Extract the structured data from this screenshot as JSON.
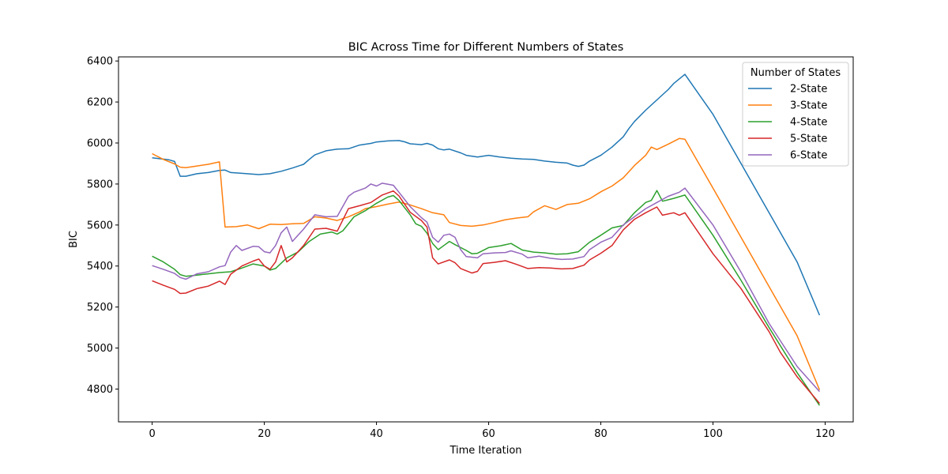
{
  "chart_data": {
    "type": "line",
    "title": "BIC Across Time for Different Numbers of States",
    "xlabel": "Time Iteration",
    "ylabel": "BIC",
    "xlim": [
      -6,
      125
    ],
    "ylim": [
      4640,
      6420
    ],
    "xticks": [
      0,
      20,
      40,
      60,
      80,
      100,
      120
    ],
    "yticks": [
      4800,
      5000,
      5200,
      5400,
      5600,
      5800,
      6000,
      6200,
      6400
    ],
    "grid": false,
    "legend": {
      "title": "Number of States",
      "position": "top-right"
    },
    "series": [
      {
        "name": "2-State",
        "color": "#1f77b4",
        "points": [
          [
            0,
            5928
          ],
          [
            3,
            5918
          ],
          [
            4,
            5910
          ],
          [
            5,
            5838
          ],
          [
            6,
            5838
          ],
          [
            8,
            5850
          ],
          [
            10,
            5856
          ],
          [
            12,
            5866
          ],
          [
            13,
            5868
          ],
          [
            14,
            5856
          ],
          [
            16,
            5852
          ],
          [
            19,
            5846
          ],
          [
            21,
            5850
          ],
          [
            23,
            5862
          ],
          [
            25,
            5878
          ],
          [
            27,
            5896
          ],
          [
            28,
            5920
          ],
          [
            29,
            5942
          ],
          [
            31,
            5962
          ],
          [
            33,
            5970
          ],
          [
            35,
            5972
          ],
          [
            37,
            5990
          ],
          [
            39,
            5998
          ],
          [
            40,
            6005
          ],
          [
            42,
            6010
          ],
          [
            44,
            6012
          ],
          [
            45,
            6006
          ],
          [
            46,
            5996
          ],
          [
            48,
            5992
          ],
          [
            49,
            5998
          ],
          [
            50,
            5990
          ],
          [
            51,
            5972
          ],
          [
            52,
            5966
          ],
          [
            53,
            5970
          ],
          [
            55,
            5952
          ],
          [
            56,
            5940
          ],
          [
            58,
            5932
          ],
          [
            60,
            5940
          ],
          [
            62,
            5932
          ],
          [
            64,
            5926
          ],
          [
            66,
            5922
          ],
          [
            68,
            5920
          ],
          [
            70,
            5912
          ],
          [
            72,
            5906
          ],
          [
            74,
            5902
          ],
          [
            75,
            5892
          ],
          [
            76,
            5886
          ],
          [
            77,
            5892
          ],
          [
            78,
            5912
          ],
          [
            80,
            5940
          ],
          [
            82,
            5980
          ],
          [
            84,
            6030
          ],
          [
            85,
            6070
          ],
          [
            86,
            6105
          ],
          [
            88,
            6160
          ],
          [
            90,
            6210
          ],
          [
            92,
            6260
          ],
          [
            93,
            6290
          ],
          [
            95,
            6335
          ],
          [
            100,
            6140
          ],
          [
            105,
            5900
          ],
          [
            110,
            5660
          ],
          [
            115,
            5420
          ],
          [
            119,
            5160
          ]
        ]
      },
      {
        "name": "3-State",
        "color": "#ff7f0e",
        "points": [
          [
            0,
            5948
          ],
          [
            2,
            5920
          ],
          [
            4,
            5898
          ],
          [
            5,
            5882
          ],
          [
            6,
            5880
          ],
          [
            8,
            5888
          ],
          [
            10,
            5896
          ],
          [
            12,
            5908
          ],
          [
            13,
            5590
          ],
          [
            15,
            5592
          ],
          [
            17,
            5600
          ],
          [
            19,
            5582
          ],
          [
            21,
            5604
          ],
          [
            23,
            5602
          ],
          [
            25,
            5606
          ],
          [
            27,
            5608
          ],
          [
            29,
            5640
          ],
          [
            31,
            5634
          ],
          [
            33,
            5622
          ],
          [
            35,
            5640
          ],
          [
            37,
            5664
          ],
          [
            38,
            5680
          ],
          [
            40,
            5690
          ],
          [
            42,
            5702
          ],
          [
            44,
            5712
          ],
          [
            46,
            5698
          ],
          [
            48,
            5680
          ],
          [
            50,
            5660
          ],
          [
            52,
            5650
          ],
          [
            53,
            5612
          ],
          [
            55,
            5598
          ],
          [
            57,
            5594
          ],
          [
            59,
            5600
          ],
          [
            61,
            5612
          ],
          [
            63,
            5626
          ],
          [
            65,
            5634
          ],
          [
            67,
            5640
          ],
          [
            68,
            5664
          ],
          [
            70,
            5694
          ],
          [
            72,
            5676
          ],
          [
            74,
            5700
          ],
          [
            76,
            5706
          ],
          [
            78,
            5728
          ],
          [
            80,
            5762
          ],
          [
            82,
            5790
          ],
          [
            84,
            5830
          ],
          [
            86,
            5890
          ],
          [
            88,
            5940
          ],
          [
            89,
            5980
          ],
          [
            90,
            5968
          ],
          [
            92,
            5994
          ],
          [
            94,
            6022
          ],
          [
            95,
            6018
          ],
          [
            100,
            5780
          ],
          [
            105,
            5540
          ],
          [
            110,
            5300
          ],
          [
            115,
            5060
          ],
          [
            119,
            4796
          ]
        ]
      },
      {
        "name": "4-State",
        "color": "#2ca02c",
        "points": [
          [
            0,
            5448
          ],
          [
            2,
            5420
          ],
          [
            4,
            5384
          ],
          [
            5,
            5358
          ],
          [
            6,
            5350
          ],
          [
            8,
            5356
          ],
          [
            10,
            5362
          ],
          [
            12,
            5368
          ],
          [
            14,
            5372
          ],
          [
            16,
            5390
          ],
          [
            18,
            5410
          ],
          [
            20,
            5400
          ],
          [
            21,
            5380
          ],
          [
            22,
            5388
          ],
          [
            24,
            5440
          ],
          [
            26,
            5468
          ],
          [
            28,
            5520
          ],
          [
            30,
            5556
          ],
          [
            32,
            5566
          ],
          [
            33,
            5556
          ],
          [
            34,
            5572
          ],
          [
            36,
            5640
          ],
          [
            38,
            5670
          ],
          [
            40,
            5706
          ],
          [
            42,
            5736
          ],
          [
            43,
            5744
          ],
          [
            44,
            5720
          ],
          [
            46,
            5650
          ],
          [
            47,
            5606
          ],
          [
            48,
            5594
          ],
          [
            49,
            5560
          ],
          [
            50,
            5510
          ],
          [
            51,
            5480
          ],
          [
            52,
            5500
          ],
          [
            53,
            5520
          ],
          [
            54,
            5504
          ],
          [
            56,
            5476
          ],
          [
            57,
            5460
          ],
          [
            58,
            5462
          ],
          [
            60,
            5490
          ],
          [
            62,
            5498
          ],
          [
            64,
            5510
          ],
          [
            66,
            5478
          ],
          [
            68,
            5468
          ],
          [
            70,
            5464
          ],
          [
            72,
            5458
          ],
          [
            74,
            5460
          ],
          [
            76,
            5470
          ],
          [
            78,
            5516
          ],
          [
            80,
            5550
          ],
          [
            82,
            5586
          ],
          [
            84,
            5598
          ],
          [
            86,
            5660
          ],
          [
            88,
            5710
          ],
          [
            89,
            5720
          ],
          [
            90,
            5768
          ],
          [
            91,
            5716
          ],
          [
            93,
            5730
          ],
          [
            95,
            5746
          ],
          [
            100,
            5550
          ],
          [
            105,
            5330
          ],
          [
            110,
            5100
          ],
          [
            115,
            4880
          ],
          [
            119,
            4720
          ]
        ]
      },
      {
        "name": "5-State",
        "color": "#d62728",
        "points": [
          [
            0,
            5328
          ],
          [
            2,
            5306
          ],
          [
            4,
            5286
          ],
          [
            5,
            5266
          ],
          [
            6,
            5268
          ],
          [
            8,
            5290
          ],
          [
            10,
            5302
          ],
          [
            12,
            5326
          ],
          [
            13,
            5310
          ],
          [
            14,
            5360
          ],
          [
            16,
            5400
          ],
          [
            18,
            5424
          ],
          [
            19,
            5434
          ],
          [
            20,
            5400
          ],
          [
            21,
            5384
          ],
          [
            22,
            5420
          ],
          [
            23,
            5500
          ],
          [
            24,
            5420
          ],
          [
            25,
            5440
          ],
          [
            27,
            5500
          ],
          [
            29,
            5580
          ],
          [
            31,
            5584
          ],
          [
            33,
            5570
          ],
          [
            35,
            5680
          ],
          [
            37,
            5694
          ],
          [
            39,
            5710
          ],
          [
            41,
            5746
          ],
          [
            43,
            5766
          ],
          [
            44,
            5742
          ],
          [
            46,
            5662
          ],
          [
            48,
            5622
          ],
          [
            49,
            5590
          ],
          [
            50,
            5440
          ],
          [
            51,
            5410
          ],
          [
            53,
            5430
          ],
          [
            54,
            5416
          ],
          [
            55,
            5388
          ],
          [
            57,
            5366
          ],
          [
            58,
            5374
          ],
          [
            59,
            5412
          ],
          [
            61,
            5418
          ],
          [
            63,
            5426
          ],
          [
            65,
            5408
          ],
          [
            67,
            5388
          ],
          [
            69,
            5392
          ],
          [
            71,
            5390
          ],
          [
            73,
            5386
          ],
          [
            75,
            5388
          ],
          [
            77,
            5404
          ],
          [
            78,
            5430
          ],
          [
            80,
            5462
          ],
          [
            82,
            5500
          ],
          [
            84,
            5576
          ],
          [
            86,
            5628
          ],
          [
            88,
            5660
          ],
          [
            90,
            5688
          ],
          [
            91,
            5648
          ],
          [
            93,
            5660
          ],
          [
            94,
            5648
          ],
          [
            95,
            5660
          ],
          [
            100,
            5460
          ],
          [
            105,
            5290
          ],
          [
            110,
            5080
          ],
          [
            112,
            4980
          ],
          [
            115,
            4860
          ],
          [
            119,
            4730
          ]
        ]
      },
      {
        "name": "6-State",
        "color": "#9467bd",
        "points": [
          [
            0,
            5402
          ],
          [
            2,
            5384
          ],
          [
            4,
            5364
          ],
          [
            5,
            5344
          ],
          [
            6,
            5336
          ],
          [
            8,
            5362
          ],
          [
            10,
            5372
          ],
          [
            12,
            5396
          ],
          [
            13,
            5402
          ],
          [
            14,
            5468
          ],
          [
            15,
            5500
          ],
          [
            16,
            5476
          ],
          [
            18,
            5496
          ],
          [
            19,
            5494
          ],
          [
            20,
            5470
          ],
          [
            21,
            5464
          ],
          [
            22,
            5500
          ],
          [
            23,
            5562
          ],
          [
            24,
            5590
          ],
          [
            25,
            5520
          ],
          [
            27,
            5580
          ],
          [
            29,
            5650
          ],
          [
            31,
            5640
          ],
          [
            33,
            5642
          ],
          [
            35,
            5740
          ],
          [
            36,
            5760
          ],
          [
            38,
            5780
          ],
          [
            39,
            5800
          ],
          [
            40,
            5790
          ],
          [
            41,
            5804
          ],
          [
            43,
            5794
          ],
          [
            44,
            5760
          ],
          [
            46,
            5690
          ],
          [
            48,
            5636
          ],
          [
            49,
            5614
          ],
          [
            50,
            5540
          ],
          [
            51,
            5516
          ],
          [
            52,
            5550
          ],
          [
            53,
            5556
          ],
          [
            54,
            5540
          ],
          [
            55,
            5480
          ],
          [
            56,
            5446
          ],
          [
            58,
            5440
          ],
          [
            59,
            5460
          ],
          [
            61,
            5464
          ],
          [
            63,
            5466
          ],
          [
            64,
            5474
          ],
          [
            66,
            5458
          ],
          [
            67,
            5440
          ],
          [
            69,
            5448
          ],
          [
            71,
            5438
          ],
          [
            73,
            5432
          ],
          [
            75,
            5434
          ],
          [
            77,
            5446
          ],
          [
            78,
            5480
          ],
          [
            80,
            5516
          ],
          [
            82,
            5540
          ],
          [
            84,
            5600
          ],
          [
            86,
            5640
          ],
          [
            88,
            5680
          ],
          [
            90,
            5710
          ],
          [
            92,
            5740
          ],
          [
            94,
            5760
          ],
          [
            95,
            5780
          ],
          [
            100,
            5600
          ],
          [
            105,
            5370
          ],
          [
            110,
            5120
          ],
          [
            115,
            4910
          ],
          [
            119,
            4788
          ]
        ]
      }
    ]
  }
}
